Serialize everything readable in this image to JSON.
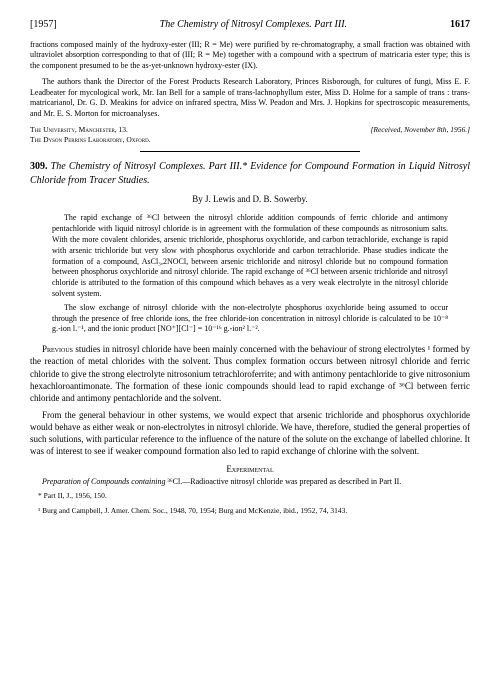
{
  "header": {
    "year": "[1957]",
    "running_title": "The Chemistry of Nitrosyl Complexes. Part III.",
    "page_num": "1617"
  },
  "carryover": {
    "p1": "fractions composed mainly of the hydroxy-ester (III; R = Me) were purified by re-chromatography, a small fraction was obtained with ultraviolet absorption corresponding to that of (III; R = Me) together with a compound with a spectrum of matricaria ester type; this is the component presumed to be the as-yet-unknown hydroxy-ester (IX).",
    "p2": "The authors thank the Director of the Forest Products Research Laboratory, Princes Risborough, for cultures of fungi, Miss E. F. Leadbeater for mycological work, Mr. Ian Bell for a sample of trans-lachnophyllum ester, Miss D. Holme for a sample of trans : trans-matricarianol, Dr. G. D. Meakins for advice on infrared spectra, Miss W. Peadon and Mrs. J. Hopkins for spectroscopic measurements, and Mr. E. S. Morton for microanalyses."
  },
  "affiliation": {
    "line1": "The University, Manchester, 13.",
    "line2": "The Dyson Perrins Laboratory, Oxford.",
    "received": "[Received, November 8th, 1956.]"
  },
  "article": {
    "number": "309.",
    "title": "The Chemistry of Nitrosyl Complexes. Part III.* Evidence for Compound Formation in Liquid Nitrosyl Chloride from Tracer Studies.",
    "authors": "By J. Lewis and D. B. Sowerby."
  },
  "abstract": {
    "p1": "The rapid exchange of ³⁶Cl between the nitrosyl chloride addition compounds of ferric chloride and antimony pentachloride with liquid nitrosyl chloride is in agreement with the formulation of these compounds as nitrosonium salts. With the more covalent chlorides, arsenic trichloride, phosphorus oxychloride, and carbon tetrachloride, exchange is rapid with arsenic trichloride but very slow with phosphorus oxychloride and carbon tetrachloride. Phase studies indicate the formation of a compound, AsCl₃,2NOCl, between arsenic trichloride and nitrosyl chloride but no compound formation between phosphorus oxychloride and nitrosyl chloride. The rapid exchange of ³⁶Cl between arsenic trichloride and nitrosyl chloride is attributed to the formation of this compound which behaves as a very weak electrolyte in the nitrosyl chloride solvent system.",
    "p2": "The slow exchange of nitrosyl chloride with the non-electrolyte phosphorus oxychloride being assumed to occur through the presence of free chloride ions, the free chloride-ion concentration in nitrosyl chloride is calculated to be 10⁻⁸ g.-ion l.⁻¹, and the ionic product [NO⁺][Cl⁻] = 10⁻¹⁶ g.-ion² l.⁻²."
  },
  "body": {
    "p1_lead": "Previous",
    "p1": " studies in nitrosyl chloride have been mainly concerned with the behaviour of strong electrolytes ¹ formed by the reaction of metal chlorides with the solvent. Thus complex formation occurs between nitrosyl chloride and ferric chloride to give the strong electrolyte nitrosonium tetrachloroferrite; and with antimony pentachloride to give nitrosonium hexachloroantimonate. The formation of these ionic compounds should lead to rapid exchange of ³⁶Cl between ferric chloride and antimony pentachloride and the solvent.",
    "p2": "From the general behaviour in other systems, we would expect that arsenic trichloride and phosphorus oxychloride would behave as either weak or non-electrolytes in nitrosyl chloride. We have, therefore, studied the general properties of such solutions, with particular reference to the influence of the nature of the solute on the exchange of labelled chlorine. It was of interest to see if weaker compound formation also led to rapid exchange of chlorine with the solvent."
  },
  "experimental": {
    "heading": "Experimental",
    "p1_lead": "Preparation of Compounds containing ",
    "p1_iso": "³⁶Cl.",
    "p1_rest": "—Radioactive nitrosyl chloride was prepared as described in Part II."
  },
  "footnotes": {
    "f1": "* Part II, J., 1956, 150.",
    "f2": "¹ Burg and Campbell, J. Amer. Chem. Soc., 1948, 70, 1954; Burg and McKenzie, ibid., 1952, 74, 3143."
  }
}
